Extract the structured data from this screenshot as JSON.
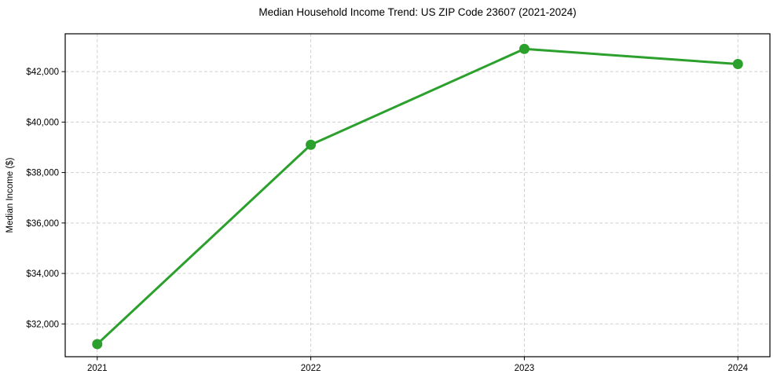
{
  "chart_data": {
    "type": "line",
    "title": "Median Household Income Trend: US ZIP Code 23607 (2021-2024)",
    "xlabel": "",
    "ylabel": "Median Income ($)",
    "x": [
      2021,
      2022,
      2023,
      2024
    ],
    "values": [
      31200,
      39100,
      42900,
      42300
    ],
    "xlim": [
      2020.85,
      2024.15
    ],
    "ylim": [
      30700,
      43500
    ],
    "xticks": [
      2021,
      2022,
      2023,
      2024
    ],
    "xtick_labels": [
      "2021",
      "2022",
      "2023",
      "2024"
    ],
    "yticks": [
      32000,
      34000,
      36000,
      38000,
      40000,
      42000
    ],
    "ytick_labels": [
      "$32,000",
      "$34,000",
      "$36,000",
      "$38,000",
      "$40,000",
      "$42,000"
    ],
    "line_color": "#2ca02c",
    "marker_color": "#2ca02c",
    "grid": true,
    "grid_style": "dashed",
    "grid_color": "#cfcfcf",
    "spine_color": "#000000",
    "legend_position": "none"
  }
}
